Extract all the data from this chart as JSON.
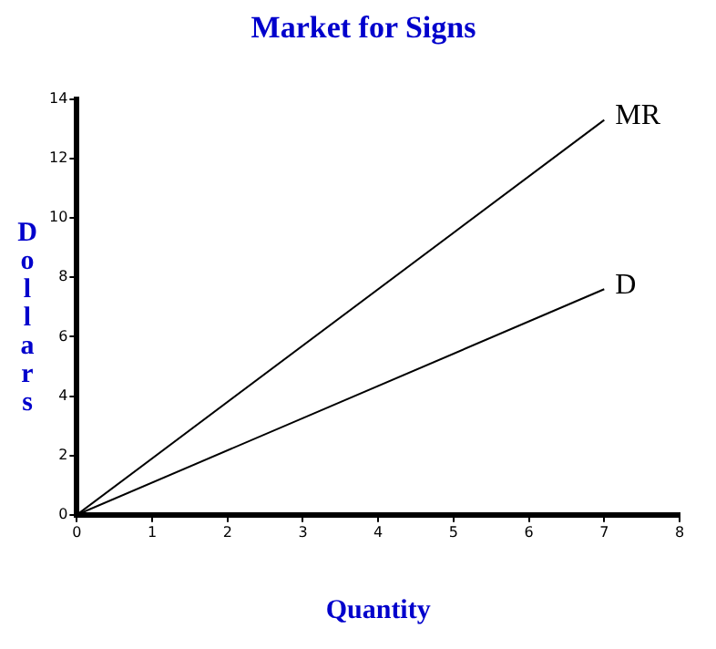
{
  "chart_data": {
    "type": "line",
    "title": "Market for Signs",
    "xlabel": "Quantity",
    "ylabel": "Dollars",
    "x": [
      0,
      7
    ],
    "series": [
      {
        "name": "MR",
        "color": "#000000",
        "values": [
          0,
          13.3
        ]
      },
      {
        "name": "D",
        "color": "#000000",
        "values": [
          0,
          7.6
        ]
      }
    ],
    "xlim": [
      0,
      8
    ],
    "xticks": [
      0,
      1,
      2,
      3,
      4,
      5,
      6,
      7,
      8
    ],
    "ylim": [
      0,
      14
    ],
    "yticks": [
      0,
      2,
      4,
      6,
      8,
      10,
      12,
      14
    ],
    "grid": false,
    "legend": false,
    "marker": "none",
    "line_style": "solid"
  }
}
